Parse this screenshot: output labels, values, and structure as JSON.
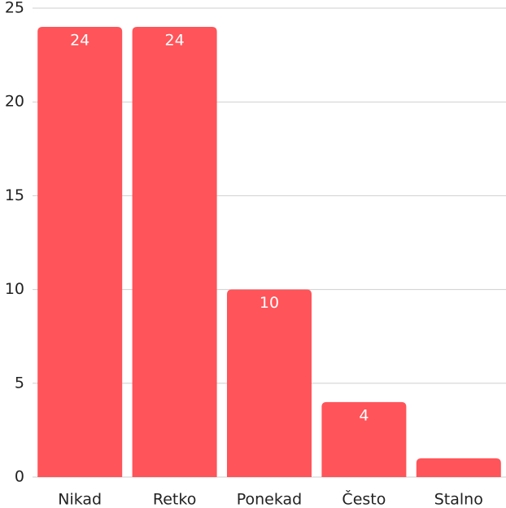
{
  "chart_data": {
    "type": "bar",
    "categories": [
      "Nikad",
      "Retko",
      "Ponekad",
      "Često",
      "Stalno"
    ],
    "values": [
      24,
      24,
      10,
      4,
      1
    ],
    "value_labels": [
      "24",
      "24",
      "10",
      "4",
      ""
    ],
    "yticks": [
      0,
      5,
      10,
      15,
      20,
      25
    ],
    "ylim": [
      0,
      25
    ],
    "grid": true,
    "legend": "none",
    "title": "",
    "xlabel": "",
    "ylabel": "",
    "colors": {
      "bar": "#ff5459",
      "grid": "#cfcfcf",
      "text": "#222222",
      "value_text": "#ffffff"
    }
  }
}
